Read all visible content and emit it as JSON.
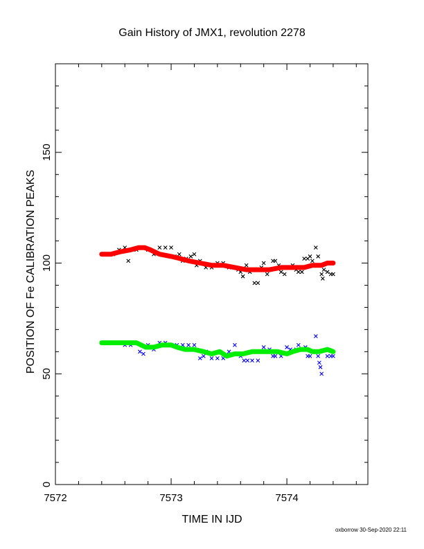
{
  "chart_data": {
    "type": "scatter",
    "title": "Gain History of JMX1, revolution 2278",
    "xlabel": "TIME IN IJD",
    "ylabel": "POSITION OF Fe CALIBRATION PEAKS",
    "xlim": [
      7572,
      7574.7
    ],
    "ylim": [
      0,
      190
    ],
    "x_ticks": [
      7572,
      7573,
      7574
    ],
    "y_ticks": [
      0,
      50,
      100,
      150
    ],
    "grid": false,
    "footer": "oxborrow 30-Sep-2020 22:11",
    "series": [
      {
        "style": "markers",
        "color": "#000000",
        "points": [
          [
            7572.4,
            104
          ],
          [
            7572.45,
            104
          ],
          [
            7572.5,
            104
          ],
          [
            7572.55,
            106
          ],
          [
            7572.6,
            107
          ],
          [
            7572.63,
            101
          ],
          [
            7572.66,
            106
          ],
          [
            7572.7,
            106
          ],
          [
            7572.75,
            107
          ],
          [
            7572.8,
            106
          ],
          [
            7572.85,
            104
          ],
          [
            7572.9,
            107
          ],
          [
            7572.95,
            107
          ],
          [
            7573.0,
            107
          ],
          [
            7573.03,
            103
          ],
          [
            7573.07,
            104
          ],
          [
            7573.1,
            101
          ],
          [
            7573.13,
            102
          ],
          [
            7573.17,
            103
          ],
          [
            7573.2,
            104
          ],
          [
            7573.22,
            99
          ],
          [
            7573.25,
            101
          ],
          [
            7573.3,
            98
          ],
          [
            7573.35,
            98
          ],
          [
            7573.4,
            100
          ],
          [
            7573.45,
            100
          ],
          [
            7573.5,
            98
          ],
          [
            7573.55,
            98
          ],
          [
            7573.58,
            97
          ],
          [
            7573.6,
            96
          ],
          [
            7573.62,
            94
          ],
          [
            7573.65,
            99
          ],
          [
            7573.68,
            96
          ],
          [
            7573.72,
            91
          ],
          [
            7573.75,
            91
          ],
          [
            7573.78,
            98
          ],
          [
            7573.8,
            100
          ],
          [
            7573.83,
            95
          ],
          [
            7573.85,
            97
          ],
          [
            7573.88,
            101
          ],
          [
            7573.9,
            101
          ],
          [
            7573.93,
            99
          ],
          [
            7573.95,
            96
          ],
          [
            7573.98,
            95
          ],
          [
            7574.0,
            98
          ],
          [
            7574.03,
            98
          ],
          [
            7574.05,
            99
          ],
          [
            7574.08,
            97
          ],
          [
            7574.1,
            96
          ],
          [
            7574.13,
            96
          ],
          [
            7574.15,
            102
          ],
          [
            7574.18,
            102
          ],
          [
            7574.2,
            103
          ],
          [
            7574.22,
            101
          ],
          [
            7574.25,
            107
          ],
          [
            7574.27,
            103
          ],
          [
            7574.3,
            95
          ],
          [
            7574.31,
            93
          ],
          [
            7574.32,
            97
          ],
          [
            7574.35,
            96
          ],
          [
            7574.38,
            95
          ],
          [
            7574.4,
            95
          ]
        ]
      },
      {
        "style": "markers",
        "color": "#0000ff",
        "points": [
          [
            7572.4,
            64
          ],
          [
            7572.45,
            64
          ],
          [
            7572.5,
            64
          ],
          [
            7572.55,
            64
          ],
          [
            7572.6,
            63
          ],
          [
            7572.65,
            63
          ],
          [
            7572.7,
            64
          ],
          [
            7572.73,
            60
          ],
          [
            7572.76,
            59
          ],
          [
            7572.8,
            63
          ],
          [
            7572.85,
            61
          ],
          [
            7572.9,
            64
          ],
          [
            7572.95,
            64
          ],
          [
            7573.0,
            63
          ],
          [
            7573.05,
            63
          ],
          [
            7573.1,
            63
          ],
          [
            7573.15,
            63
          ],
          [
            7573.2,
            63
          ],
          [
            7573.25,
            57
          ],
          [
            7573.28,
            58
          ],
          [
            7573.3,
            60
          ],
          [
            7573.35,
            57
          ],
          [
            7573.4,
            57
          ],
          [
            7573.45,
            57
          ],
          [
            7573.5,
            60
          ],
          [
            7573.55,
            63
          ],
          [
            7573.6,
            58
          ],
          [
            7573.63,
            56
          ],
          [
            7573.66,
            56
          ],
          [
            7573.7,
            56
          ],
          [
            7573.75,
            56
          ],
          [
            7573.78,
            60
          ],
          [
            7573.8,
            62
          ],
          [
            7573.85,
            61
          ],
          [
            7573.88,
            58
          ],
          [
            7573.9,
            58
          ],
          [
            7573.95,
            58
          ],
          [
            7574.0,
            62
          ],
          [
            7574.03,
            61
          ],
          [
            7574.05,
            60
          ],
          [
            7574.08,
            61
          ],
          [
            7574.1,
            63
          ],
          [
            7574.13,
            61
          ],
          [
            7574.16,
            62
          ],
          [
            7574.18,
            58
          ],
          [
            7574.2,
            58
          ],
          [
            7574.25,
            67
          ],
          [
            7574.27,
            58
          ],
          [
            7574.28,
            55
          ],
          [
            7574.29,
            53
          ],
          [
            7574.3,
            50
          ],
          [
            7574.35,
            58
          ],
          [
            7574.38,
            58
          ],
          [
            7574.4,
            58
          ]
        ]
      },
      {
        "style": "thick-line",
        "color": "#ff0000",
        "points": [
          [
            7572.4,
            104
          ],
          [
            7572.48,
            104
          ],
          [
            7572.55,
            105
          ],
          [
            7572.65,
            106
          ],
          [
            7572.72,
            107
          ],
          [
            7572.77,
            107
          ],
          [
            7572.82,
            106
          ],
          [
            7572.9,
            104
          ],
          [
            7573.0,
            103
          ],
          [
            7573.08,
            102
          ],
          [
            7573.15,
            101
          ],
          [
            7573.25,
            100
          ],
          [
            7573.35,
            99
          ],
          [
            7573.45,
            99
          ],
          [
            7573.55,
            98
          ],
          [
            7573.65,
            97
          ],
          [
            7573.75,
            97
          ],
          [
            7573.85,
            97
          ],
          [
            7573.95,
            98
          ],
          [
            7574.05,
            98
          ],
          [
            7574.15,
            98
          ],
          [
            7574.22,
            99
          ],
          [
            7574.3,
            99
          ],
          [
            7574.35,
            100
          ],
          [
            7574.4,
            100
          ]
        ]
      },
      {
        "style": "thick-line",
        "color": "#00ee00",
        "points": [
          [
            7572.4,
            64
          ],
          [
            7572.5,
            64
          ],
          [
            7572.6,
            64
          ],
          [
            7572.7,
            64
          ],
          [
            7572.78,
            62
          ],
          [
            7572.85,
            62
          ],
          [
            7572.92,
            63
          ],
          [
            7573.0,
            63
          ],
          [
            7573.05,
            62
          ],
          [
            7573.12,
            61
          ],
          [
            7573.2,
            61
          ],
          [
            7573.28,
            60
          ],
          [
            7573.35,
            59
          ],
          [
            7573.42,
            60
          ],
          [
            7573.48,
            58
          ],
          [
            7573.55,
            59
          ],
          [
            7573.62,
            59
          ],
          [
            7573.7,
            60
          ],
          [
            7573.78,
            60
          ],
          [
            7573.85,
            60
          ],
          [
            7573.92,
            60
          ],
          [
            7574.0,
            59
          ],
          [
            7574.05,
            60
          ],
          [
            7574.12,
            61
          ],
          [
            7574.18,
            61
          ],
          [
            7574.22,
            60
          ],
          [
            7574.28,
            60
          ],
          [
            7574.35,
            61
          ],
          [
            7574.4,
            60
          ]
        ]
      }
    ]
  }
}
